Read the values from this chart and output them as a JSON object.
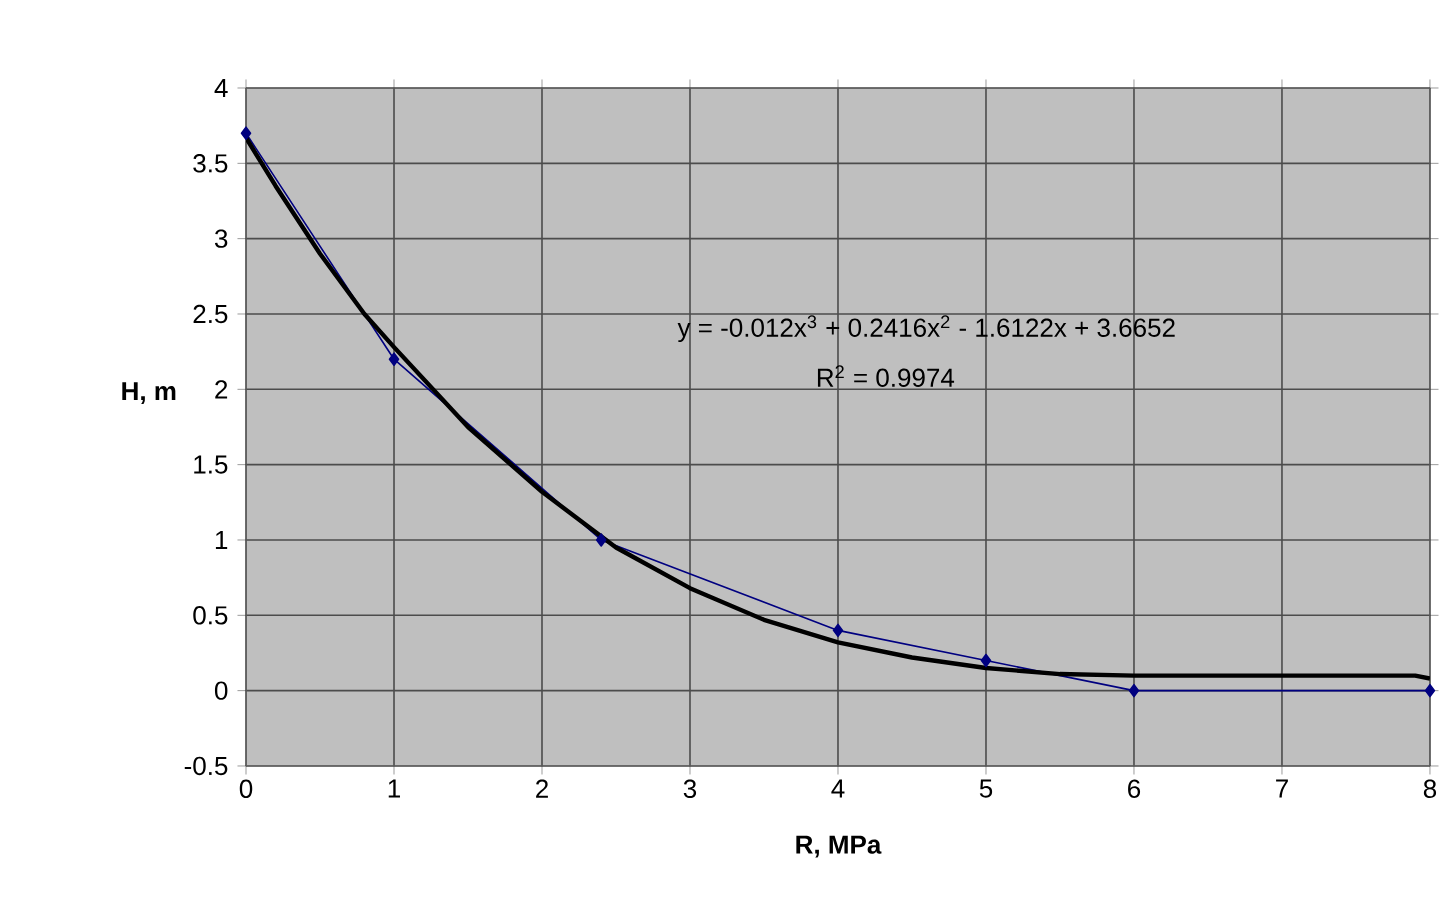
{
  "chart_data": {
    "type": "line",
    "xlabel": "R, MPa",
    "ylabel": "H, m",
    "xlim": [
      0,
      8
    ],
    "ylim": [
      -0.5,
      4
    ],
    "xticks": [
      0,
      1,
      2,
      3,
      4,
      5,
      6,
      7,
      8
    ],
    "yticks": [
      -0.5,
      0,
      0.5,
      1,
      1.5,
      2,
      2.5,
      3,
      3.5,
      4
    ],
    "grid": true,
    "annotations": [
      "y = -0.012x$^{3}$ + 0.2416x$^{2}$ - 1.6122x + 3.6652",
      "R$^{2}$ = 0.9974"
    ],
    "series": [
      {
        "color": "#000080",
        "marker": "diamond",
        "x": [
          0,
          1,
          2.4,
          4,
          5,
          6,
          8
        ],
        "values": [
          3.7,
          2.2,
          1.0,
          0.4,
          0.2,
          0,
          0
        ]
      },
      {
        "color": "#000000",
        "marker": "none",
        "x": [
          0,
          0.2,
          0.5,
          0.8,
          1,
          1.5,
          2,
          2.5,
          3,
          3.5,
          4,
          4.5,
          5,
          5.5,
          6,
          7,
          7.9,
          8
        ],
        "values": [
          3.67,
          3.35,
          2.9,
          2.5,
          2.28,
          1.75,
          1.32,
          0.95,
          0.68,
          0.47,
          0.32,
          0.22,
          0.15,
          0.11,
          0.1,
          0.1,
          0.1,
          0.08
        ]
      }
    ]
  }
}
